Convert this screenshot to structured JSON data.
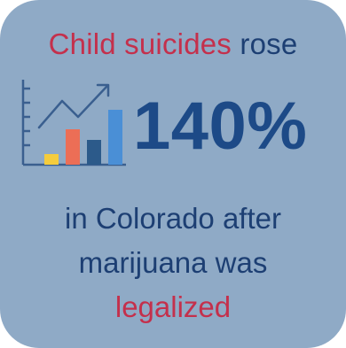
{
  "headline": {
    "part1": "Child suicides",
    "part2": " rose"
  },
  "stat": {
    "value": "140%"
  },
  "body": {
    "line1": "in Colorado after",
    "line2": "marijuana was",
    "line3": "legalized"
  },
  "icon": {
    "name": "rising-bar-chart-icon",
    "bar_colors": [
      "#f5cc3c",
      "#ec6e56",
      "#2c5a8a",
      "#4a8fd6"
    ]
  },
  "colors": {
    "card_background": "#8faac6",
    "accent_red": "#c4304c",
    "text_navy": "#1d3f73",
    "stat_blue": "#1d4a87"
  }
}
